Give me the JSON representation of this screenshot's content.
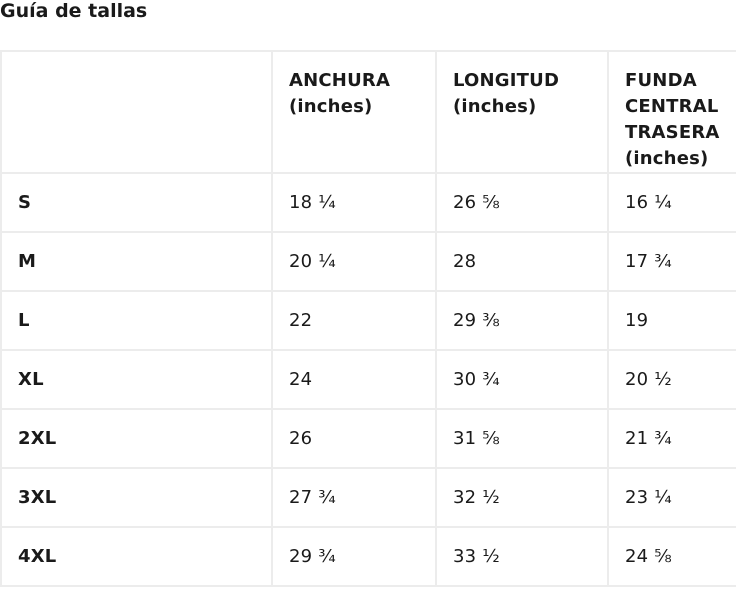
{
  "title": "Guía de tallas",
  "table": {
    "headers": [
      "",
      "ANCHURA (inches)",
      "LONGITUD (inches)",
      "FUNDA CENTRAL TRASERA (inches)"
    ],
    "rows": [
      [
        "S",
        "18 ¼",
        "26 ⅝",
        "16 ¼"
      ],
      [
        "M",
        "20 ¼",
        "28",
        "17 ¾"
      ],
      [
        "L",
        "22",
        "29 ⅜",
        "19"
      ],
      [
        "XL",
        "24",
        "30 ¾",
        "20 ½"
      ],
      [
        "2XL",
        "26",
        "31 ⅝",
        "21 ¾"
      ],
      [
        "3XL",
        "27 ¾",
        "32 ½",
        "23 ¼"
      ],
      [
        "4XL",
        "29 ¾",
        "33 ½",
        "24 ⅝"
      ]
    ]
  }
}
